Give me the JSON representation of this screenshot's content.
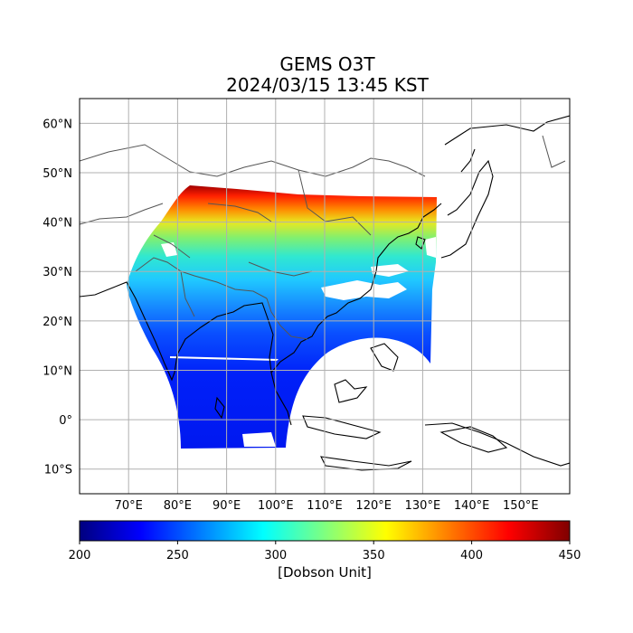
{
  "title": "GEMS O3T",
  "subtitle": "2024/03/15 13:45 KST",
  "map": {
    "lon_range": [
      60,
      160
    ],
    "lat_range": [
      -15,
      65
    ],
    "lon_ticks": [
      "70°E",
      "80°E",
      "90°E",
      "100°E",
      "110°E",
      "120°E",
      "130°E",
      "140°E",
      "150°E"
    ],
    "lat_ticks": [
      "60°N",
      "50°N",
      "40°N",
      "30°N",
      "20°N",
      "10°N",
      "0°",
      "10°S"
    ],
    "gridlines": true,
    "coastlines": true
  },
  "colorbar": {
    "colormap": "jet",
    "min": 200,
    "max": 450,
    "tick_labels": [
      "200",
      "250",
      "300",
      "350",
      "400",
      "450"
    ],
    "label": "[Dobson Unit]",
    "colors": [
      "#00007f",
      "#0000ff",
      "#007fff",
      "#00ffff",
      "#7fff7f",
      "#ffff00",
      "#ff7f00",
      "#ff0000",
      "#7f0000"
    ]
  }
}
